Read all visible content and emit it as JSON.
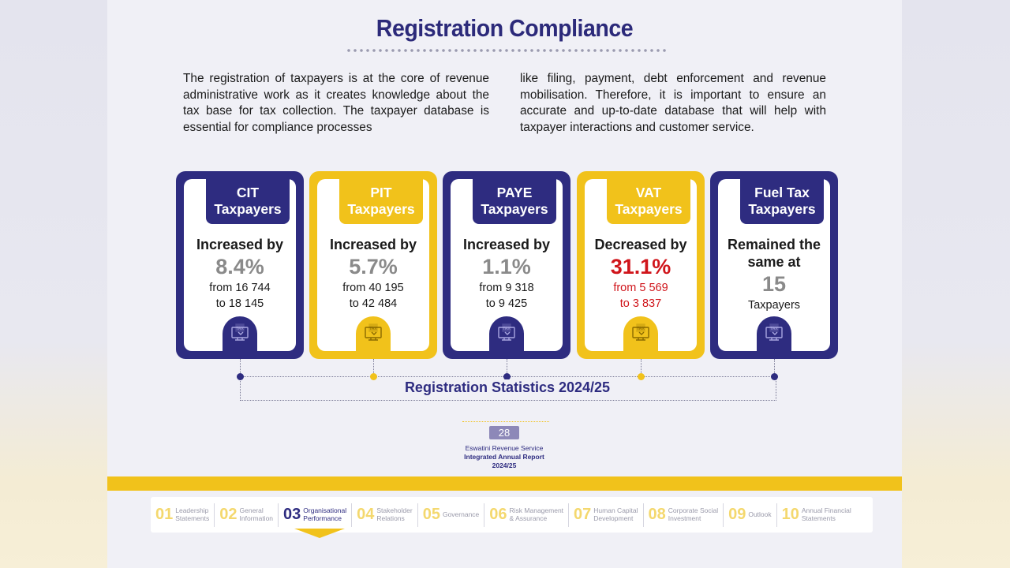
{
  "page": {
    "title": "Registration Compliance",
    "intro_left": "The registration of taxpayers is at the core of revenue administrative work as it creates knowledge about the tax base for tax collection. The taxpayer database is essential for compliance processes",
    "intro_right": "like filing, payment, debt enforcement and revenue mobilisation. Therefore, it is important to ensure an accurate and up-to-date database that will help with taxpayer interactions and customer service."
  },
  "cards": [
    {
      "title": "CIT\nTaxpayers",
      "status": "Increased by",
      "value": "8.4%",
      "range_from": "from 16 744",
      "range_to": "to 18 145",
      "color": "#2e2c80"
    },
    {
      "title": "PIT\nTaxpayers",
      "status": "Increased by",
      "value": "5.7%",
      "range_from": "from 40 195",
      "range_to": "to 42 484",
      "color": "#f1c21b"
    },
    {
      "title": "PAYE\nTaxpayers",
      "status": "Increased by",
      "value": "1.1%",
      "range_from": "from 9 318",
      "range_to": "to 9 425",
      "color": "#2e2c80"
    },
    {
      "title": "VAT\nTaxpayers",
      "status": "Decreased by",
      "value": "31.1%",
      "range_from": "from 5 569",
      "range_to": "to 3 837",
      "color": "#f1c21b"
    },
    {
      "title": "Fuel Tax\nTaxpayers",
      "status": "Remained the same at",
      "value": "15",
      "range_from": "Taxpayers",
      "color": "#2e2c80"
    }
  ],
  "stats_label": "Registration Statistics 2024/25",
  "footer": {
    "page_number": "28",
    "org": "Eswatini Revenue Service",
    "report": "Integrated Annual Report",
    "year": "2024/25"
  },
  "nav": [
    {
      "num": "01",
      "label": "Leadership\nStatements"
    },
    {
      "num": "02",
      "label": "General\nInformation"
    },
    {
      "num": "03",
      "label": "Organisational\nPerformance",
      "active": true
    },
    {
      "num": "04",
      "label": "Stakeholder\nRelations"
    },
    {
      "num": "05",
      "label": "Governance"
    },
    {
      "num": "06",
      "label": "Risk Management\n& Assurance"
    },
    {
      "num": "07",
      "label": "Human Capital\nDevelopment"
    },
    {
      "num": "08",
      "label": "Corporate Social\nInvestment"
    },
    {
      "num": "09",
      "label": "Outlook"
    },
    {
      "num": "10",
      "label": "Annual Financial\nStatements"
    }
  ],
  "colors": {
    "navy": "#2e2c80",
    "gold": "#f1c21b",
    "red": "#d0151b"
  }
}
